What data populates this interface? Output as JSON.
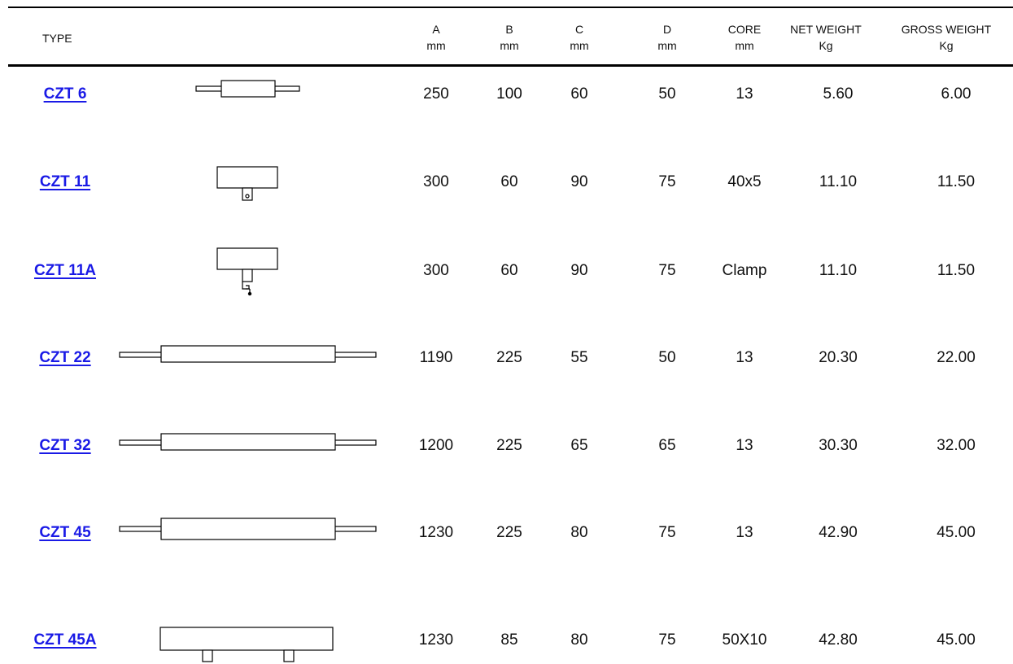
{
  "table": {
    "header": {
      "type": "TYPE",
      "columns": [
        {
          "key": "a",
          "line1": "A",
          "line2": "mm"
        },
        {
          "key": "b",
          "line1": "B",
          "line2": "mm"
        },
        {
          "key": "c",
          "line1": "C",
          "line2": "mm"
        },
        {
          "key": "d",
          "line1": "D",
          "line2": "mm"
        },
        {
          "key": "core",
          "line1": "CORE",
          "line2": "mm"
        },
        {
          "key": "net",
          "line1": "NET WEIGHT",
          "line2": "Kg"
        },
        {
          "key": "gross",
          "line1": "GROSS WEIGHT",
          "line2": "Kg"
        }
      ]
    },
    "rows": [
      {
        "type": "CZT 6",
        "a": "250",
        "b": "100",
        "c": "60",
        "d": "50",
        "core": "13",
        "net": "5.60",
        "gross": "6.00"
      },
      {
        "type": "CZT 11",
        "a": "300",
        "b": "60",
        "c": "90",
        "d": "75",
        "core": "40x5",
        "net": "11.10",
        "gross": "11.50"
      },
      {
        "type": "CZT 11A",
        "a": "300",
        "b": "60",
        "c": "90",
        "d": "75",
        "core": "Clamp",
        "net": "11.10",
        "gross": "11.50"
      },
      {
        "type": "CZT 22",
        "a": "1190",
        "b": "225",
        "c": "55",
        "d": "50",
        "core": "13",
        "net": "20.30",
        "gross": "22.00"
      },
      {
        "type": "CZT 32",
        "a": "1200",
        "b": "225",
        "c": "65",
        "d": "65",
        "core": "13",
        "net": "30.30",
        "gross": "32.00"
      },
      {
        "type": "CZT 45",
        "a": "1230",
        "b": "225",
        "c": "80",
        "d": "75",
        "core": "13",
        "net": "42.90",
        "gross": "45.00"
      },
      {
        "type": "CZT 45A",
        "a": "1230",
        "b": "85",
        "c": "80",
        "d": "75",
        "core": "50X10",
        "net": "42.80",
        "gross": "45.00"
      }
    ]
  },
  "colors": {
    "link": "#1a1ae6",
    "text": "#111111",
    "rule": "#000000"
  }
}
